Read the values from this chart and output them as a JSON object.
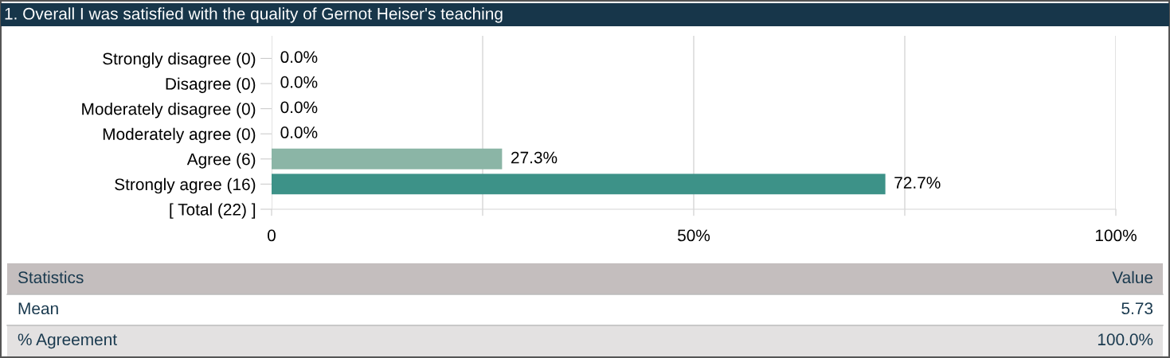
{
  "chart_data": {
    "type": "bar",
    "orientation": "horizontal",
    "title": "1. Overall I was satisfied with the quality of Gernot Heiser's teaching",
    "categories": [
      "Strongly disagree (0)",
      "Disagree (0)",
      "Moderately disagree (0)",
      "Moderately agree (0)",
      "Agree (6)",
      "Strongly agree (16)",
      "[ Total (22) ]"
    ],
    "values": [
      0,
      0,
      0,
      0,
      27.3,
      72.7,
      null
    ],
    "value_labels": [
      "0.0%",
      "0.0%",
      "0.0%",
      "0.0%",
      "27.3%",
      "72.7%",
      null
    ],
    "colors": [
      "#8bb5a6",
      "#8bb5a6",
      "#8bb5a6",
      "#8bb5a6",
      "#8bb5a6",
      "#3d9288",
      "#3d9288"
    ],
    "xlim": [
      0,
      100
    ],
    "xticks": [
      {
        "value": 0,
        "label": "0"
      },
      {
        "value": 25,
        "label": null
      },
      {
        "value": 50,
        "label": "50%"
      },
      {
        "value": 75,
        "label": null
      },
      {
        "value": 100,
        "label": "100%"
      }
    ],
    "grid": "x",
    "legend": false,
    "annotations": [
      "Statistics",
      "Value",
      "Mean",
      "5.73",
      "% Agreement",
      "100.0%"
    ]
  }
}
